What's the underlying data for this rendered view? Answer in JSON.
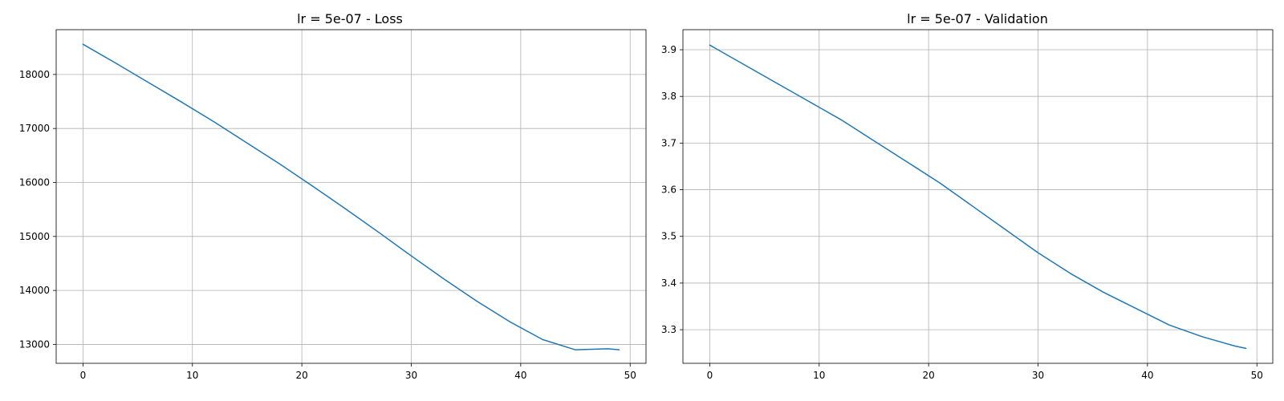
{
  "chart_data": [
    {
      "type": "line",
      "title": "lr = 5e-07 - Loss",
      "xlabel": "",
      "ylabel": "",
      "xlim": [
        -2.45,
        51.45
      ],
      "ylim": [
        12650,
        18830
      ],
      "xticks": [
        0,
        10,
        20,
        30,
        40,
        50
      ],
      "yticks": [
        13000,
        14000,
        15000,
        16000,
        17000,
        18000
      ],
      "grid": true,
      "series": [
        {
          "color": "#1f77b4",
          "x": [
            0,
            3,
            6,
            9,
            12,
            15,
            18,
            21,
            24,
            27,
            30,
            33,
            36,
            39,
            42,
            45,
            48,
            49
          ],
          "y": [
            18560,
            18210,
            17850,
            17490,
            17120,
            16730,
            16340,
            15930,
            15510,
            15080,
            14640,
            14210,
            13800,
            13420,
            13090,
            12900,
            12920,
            12900
          ]
        }
      ]
    },
    {
      "type": "line",
      "title": "lr = 5e-07 - Validation",
      "xlabel": "",
      "ylabel": "",
      "xlim": [
        -2.45,
        51.45
      ],
      "ylim": [
        3.228,
        3.943
      ],
      "xticks": [
        0,
        10,
        20,
        30,
        40,
        50
      ],
      "yticks": [
        3.3,
        3.4,
        3.5,
        3.6,
        3.7,
        3.8,
        3.9
      ],
      "grid": true,
      "series": [
        {
          "color": "#1f77b4",
          "x": [
            0,
            3,
            6,
            9,
            12,
            15,
            18,
            21,
            24,
            27,
            30,
            33,
            36,
            39,
            42,
            45,
            48,
            49
          ],
          "y": [
            3.91,
            3.87,
            3.83,
            3.79,
            3.75,
            3.705,
            3.66,
            3.615,
            3.565,
            3.515,
            3.465,
            3.42,
            3.38,
            3.345,
            3.31,
            3.285,
            3.265,
            3.26
          ]
        }
      ]
    }
  ]
}
